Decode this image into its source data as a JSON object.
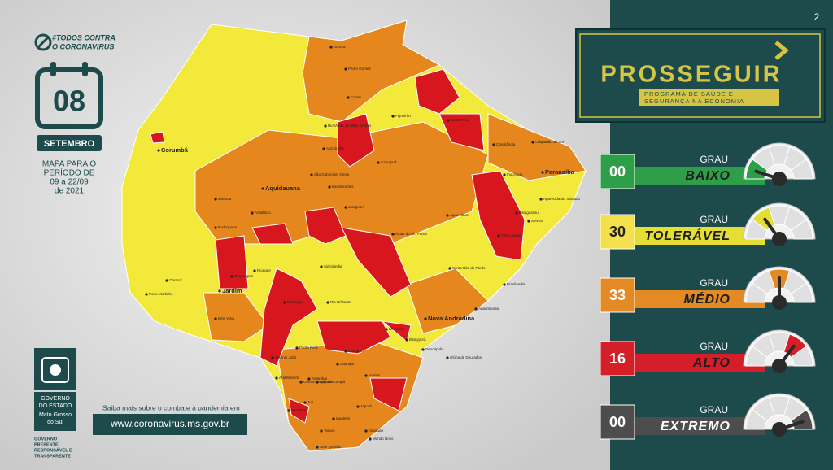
{
  "page_number": "2",
  "campaign": {
    "line1": "#TODOS CONTRA",
    "line2": "O CORONAVIRUS"
  },
  "calendar": {
    "day": "08",
    "month": "SETEMBRO"
  },
  "period": {
    "line1": "MAPA PARA O",
    "line2": "PERÍODO DE",
    "line3": "09 a 22/09",
    "line4": "de 2021"
  },
  "government": {
    "line1": "GOVERNO",
    "line2": "DO ESTADO",
    "line3": "Mato Grosso",
    "line4": "do Sul",
    "tagline1": "GOVERNO",
    "tagline2": "PRESENTE,",
    "tagline3": "RESPONSÁVEL E",
    "tagline4": "TRANSPARENTE"
  },
  "info": {
    "text": "Saiba mais sobre o combate à pandemia em",
    "url": "www.coronavirus.ms.gov.br"
  },
  "program": {
    "title": "PROSSEGUIR",
    "subtitle1": "PROGRAMA DE SAÚDE E",
    "subtitle2": "SEGURANÇA NA ECONOMIA"
  },
  "levels": [
    {
      "count": "00",
      "grau": "GRAU",
      "name": "BAIXO"
    },
    {
      "count": "30",
      "grau": "GRAU",
      "name": "TOLERÁVEL"
    },
    {
      "count": "33",
      "grau": "GRAU",
      "name": "MÉDIO"
    },
    {
      "count": "16",
      "grau": "GRAU",
      "name": "ALTO"
    },
    {
      "count": "00",
      "grau": "GRAU",
      "name": "EXTREMO"
    }
  ],
  "map_labels": [
    "Corumbá",
    "Aquidauana",
    "Jardim",
    "Nova Andradina",
    "Paranaíba",
    "Coxim",
    "Sonora",
    "Figueirão",
    "Camapuã",
    "Bodoquena",
    "Porto Murtinho",
    "Caracol",
    "Bela Vista",
    "Ponta Porã",
    "Dourados",
    "Bataguassu",
    "Três Lagoas",
    "Costa Rica",
    "Cassilândia",
    "Anastácio",
    "Miranda",
    "Sidrolândia",
    "Rio Brilhante",
    "Maracaju",
    "Naviraí",
    "Amambai",
    "Iguatemi",
    "Eldorado",
    "Brasilândia",
    "Água Clara",
    "Ribas do Rio Pardo",
    "Nioaque",
    "Guia Lopes",
    "Alcinópolis",
    "Pedro Gomes",
    "Rio Verde de Mato Grosso",
    "São Gabriel do Oeste",
    "Bandeirantes",
    "Jaraguari",
    "Chapadão do Sul",
    "Inocência",
    "Aparecida do Taboado",
    "Selvíria",
    "Santa Rita do Pardo",
    "Anaurilândia",
    "Batayporã",
    "Ivinhema",
    "Deodápolis",
    "Glória de Dourados",
    "Caarapó",
    "Juti",
    "Tacuru",
    "Japorã",
    "Mundo Novo",
    "Sete Quedas",
    "Paranhos",
    "Coronel Sapucaia",
    "Aral Moreira",
    "Antônio João",
    "Laguna Carapã"
  ]
}
